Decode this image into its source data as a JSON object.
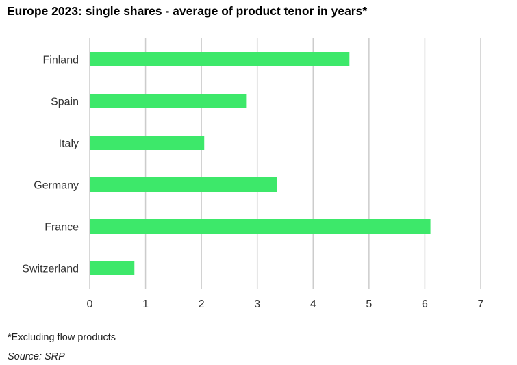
{
  "title": "Europe 2023: single shares - average of product tenor in years*",
  "footnote": "*Excluding flow products",
  "source": "Source: SRP",
  "colors": {
    "bar": "#3de86a",
    "grid": "#cccccc",
    "text": "#333333"
  },
  "chart_data": {
    "type": "bar",
    "orientation": "horizontal",
    "categories": [
      "Finland",
      "Spain",
      "Italy",
      "Germany",
      "France",
      "Switzerland"
    ],
    "values": [
      4.65,
      2.8,
      2.05,
      3.35,
      6.1,
      0.8
    ],
    "xlim": [
      0,
      7
    ],
    "xticks": [
      "0",
      "1",
      "2",
      "3",
      "4",
      "5",
      "6",
      "7"
    ],
    "grid": "vertical",
    "legend": "none"
  }
}
